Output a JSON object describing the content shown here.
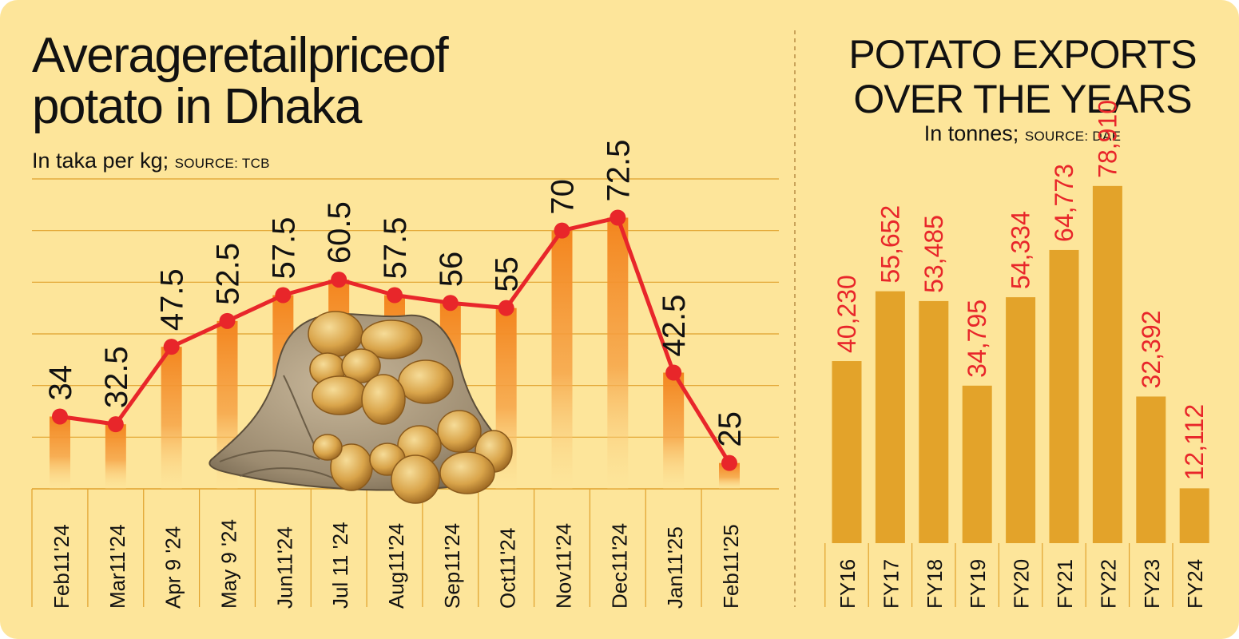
{
  "left": {
    "title_line1": "Averageretailpriceof",
    "title_line2": "potato in Dhaka",
    "subtitle": "In taka per kg;",
    "source": "SOURCE: TCB"
  },
  "right": {
    "title_line1": "POTATO EXPORTS",
    "title_line2": "OVER THE YEARS",
    "subtitle": "In tonnes;",
    "source": "SOURCE: DAE"
  },
  "image": {
    "icon": "potato-sack-icon"
  },
  "colors": {
    "background": "#fde59a",
    "line": "#e8262a",
    "bar_right": "#e3a32a",
    "bar_left_top": "#f3851e",
    "grid": "#e0a12c",
    "right_labels": "#e8262a"
  },
  "chart_data": [
    {
      "type": "line",
      "title": "Averageretailpriceof potato in Dhaka",
      "subtitle": "In taka per kg; SOURCE: TCB",
      "categories": [
        "Feb11'24",
        "Mar11'24",
        "Apr 9 '24",
        "May 9 '24",
        "Jun11'24",
        "Jul 11 '24",
        "Aug11'24",
        "Sep11'24",
        "Oct11'24",
        "Nov11'24",
        "Dec11'24",
        "Jan11'25",
        "Feb11'25"
      ],
      "values": [
        34,
        32.5,
        47.5,
        52.5,
        57.5,
        60.5,
        57.5,
        56,
        55,
        70,
        72.5,
        42.5,
        25
      ],
      "labels": [
        "34",
        "32.5",
        "47.5",
        "52.5",
        "57.5",
        "60.5",
        "57.5",
        "56",
        "55",
        "70",
        "72.5",
        "42.5",
        "25"
      ],
      "ylim": [
        20,
        80
      ],
      "grid": true
    },
    {
      "type": "bar",
      "title": "POTATO EXPORTS OVER THE YEARS",
      "subtitle": "In tonnes; SOURCE: DAE",
      "categories": [
        "FY16",
        "FY17",
        "FY18",
        "FY19",
        "FY20",
        "FY21",
        "FY22",
        "FY23",
        "FY24"
      ],
      "values": [
        40230,
        55652,
        53485,
        34795,
        54334,
        64773,
        78910,
        32392,
        12112
      ],
      "labels": [
        "40,230",
        "55,652",
        "53,485",
        "34,795",
        "54,334",
        "64,773",
        "78,910",
        "32,392",
        "12,112"
      ],
      "ylim": [
        0,
        120000
      ]
    }
  ]
}
